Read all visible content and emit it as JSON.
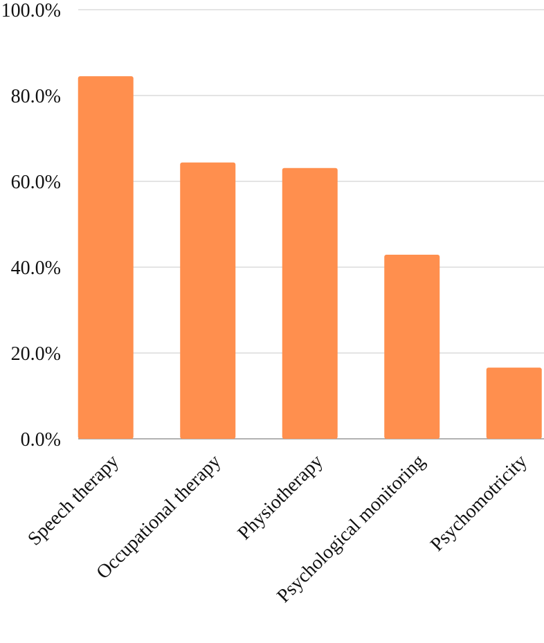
{
  "chart_data": {
    "type": "bar",
    "categories": [
      "Speech therapy",
      "Occupational therapy",
      "Physiotherapy",
      "Psychological monitoring",
      "Psychomotricity"
    ],
    "values": [
      84.5,
      64.4,
      63.1,
      42.9,
      16.6
    ],
    "color": "#ff8f4e",
    "ylim": [
      0,
      100
    ],
    "yticks": [
      {
        "value": 0,
        "label": "0.0%"
      },
      {
        "value": 20,
        "label": "20.0%"
      },
      {
        "value": 40,
        "label": "40.0%"
      },
      {
        "value": 60,
        "label": "60.0%"
      },
      {
        "value": 80,
        "label": "80.0%"
      },
      {
        "value": 100,
        "label": "100.0%"
      }
    ],
    "grid": true
  }
}
